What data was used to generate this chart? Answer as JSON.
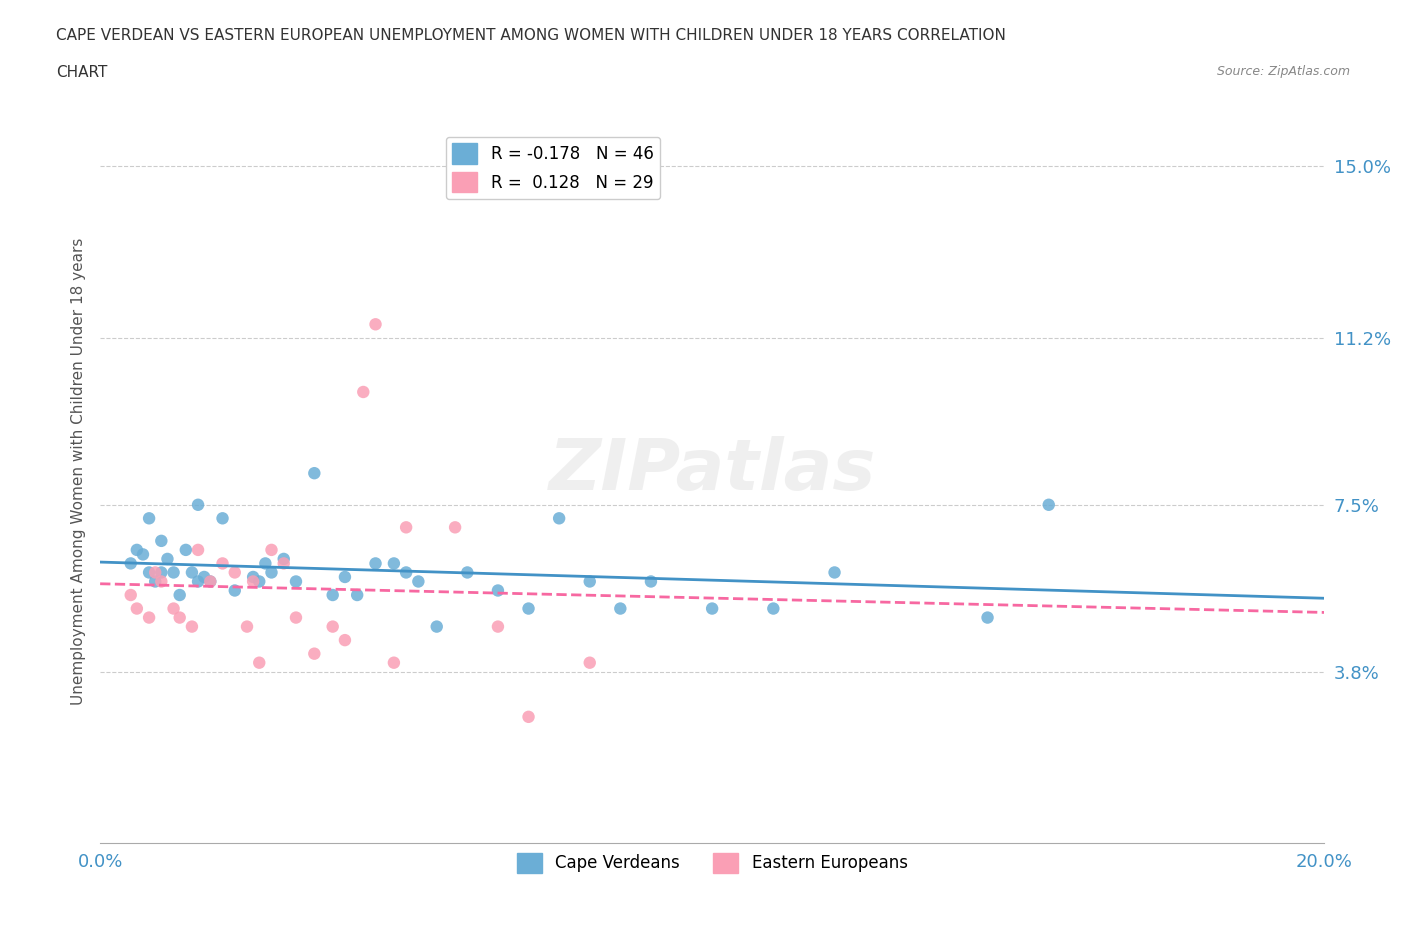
{
  "title_line1": "CAPE VERDEAN VS EASTERN EUROPEAN UNEMPLOYMENT AMONG WOMEN WITH CHILDREN UNDER 18 YEARS CORRELATION",
  "title_line2": "CHART",
  "source": "Source: ZipAtlas.com",
  "xlabel": "",
  "ylabel": "Unemployment Among Women with Children Under 18 years",
  "xlim": [
    0.0,
    0.2
  ],
  "ylim": [
    0.0,
    0.165
  ],
  "yticks": [
    0.038,
    0.075,
    0.112,
    0.15
  ],
  "ytick_labels": [
    "3.8%",
    "7.5%",
    "11.2%",
    "15.0%"
  ],
  "xticks": [
    0.0,
    0.025,
    0.05,
    0.075,
    0.1,
    0.125,
    0.15,
    0.175,
    0.2
  ],
  "xtick_labels": [
    "0.0%",
    "",
    "",
    "",
    "",
    "",
    "",
    "",
    "20.0%"
  ],
  "legend1_label": "R = -0.178   N = 46",
  "legend2_label": "R =  0.128   N = 29",
  "color_blue": "#6baed6",
  "color_pink": "#fa9fb5",
  "color_blue_line": "#4292c6",
  "color_pink_line": "#f768a1",
  "R_blue": -0.178,
  "N_blue": 46,
  "R_pink": 0.128,
  "N_pink": 29,
  "watermark": "ZIPatlas",
  "blue_scatter_x": [
    0.005,
    0.006,
    0.007,
    0.008,
    0.008,
    0.009,
    0.01,
    0.01,
    0.011,
    0.012,
    0.013,
    0.014,
    0.015,
    0.016,
    0.016,
    0.017,
    0.018,
    0.02,
    0.022,
    0.025,
    0.026,
    0.027,
    0.028,
    0.03,
    0.032,
    0.035,
    0.038,
    0.04,
    0.042,
    0.045,
    0.048,
    0.05,
    0.052,
    0.055,
    0.06,
    0.065,
    0.07,
    0.075,
    0.08,
    0.085,
    0.09,
    0.1,
    0.11,
    0.12,
    0.145,
    0.155
  ],
  "blue_scatter_y": [
    0.062,
    0.065,
    0.064,
    0.06,
    0.072,
    0.058,
    0.06,
    0.067,
    0.063,
    0.06,
    0.055,
    0.065,
    0.06,
    0.058,
    0.075,
    0.059,
    0.058,
    0.072,
    0.056,
    0.059,
    0.058,
    0.062,
    0.06,
    0.063,
    0.058,
    0.082,
    0.055,
    0.059,
    0.055,
    0.062,
    0.062,
    0.06,
    0.058,
    0.048,
    0.06,
    0.056,
    0.052,
    0.072,
    0.058,
    0.052,
    0.058,
    0.052,
    0.052,
    0.06,
    0.05,
    0.075
  ],
  "pink_scatter_x": [
    0.005,
    0.006,
    0.008,
    0.009,
    0.01,
    0.012,
    0.013,
    0.015,
    0.016,
    0.018,
    0.02,
    0.022,
    0.024,
    0.025,
    0.026,
    0.028,
    0.03,
    0.032,
    0.035,
    0.038,
    0.04,
    0.043,
    0.045,
    0.048,
    0.05,
    0.058,
    0.065,
    0.07,
    0.08
  ],
  "pink_scatter_y": [
    0.055,
    0.052,
    0.05,
    0.06,
    0.058,
    0.052,
    0.05,
    0.048,
    0.065,
    0.058,
    0.062,
    0.06,
    0.048,
    0.058,
    0.04,
    0.065,
    0.062,
    0.05,
    0.042,
    0.048,
    0.045,
    0.1,
    0.115,
    0.04,
    0.07,
    0.07,
    0.048,
    0.028,
    0.04
  ]
}
